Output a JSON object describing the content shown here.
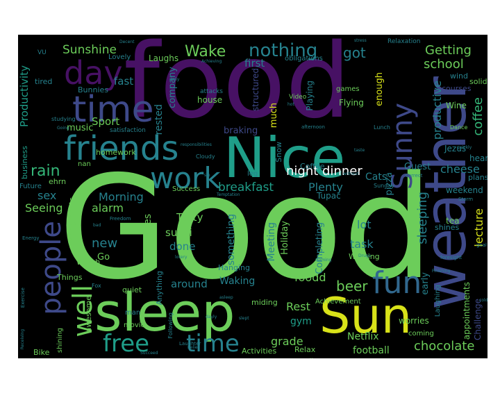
{
  "palette": {
    "background": "#000000",
    "green": "#6ccd5a",
    "yellow": "#d8e219",
    "teal": "#1f9e89",
    "blue": "#3e4989",
    "purple": "#471164",
    "cyan": "#26828e"
  },
  "words": [
    {
      "text": "Good",
      "color": "#6ccd5a"
    },
    {
      "text": "food",
      "color": "#471164"
    },
    {
      "text": "weather",
      "color": "#3e4989"
    },
    {
      "text": "Nice",
      "color": "#1f9e89"
    },
    {
      "text": "sleep",
      "color": "#6ccd5a"
    },
    {
      "text": "Sun",
      "color": "#d8e219"
    },
    {
      "text": "friends",
      "color": "#26828e"
    },
    {
      "text": "time",
      "color": "#3e4989"
    },
    {
      "text": "day",
      "color": "#471164"
    },
    {
      "text": "work",
      "color": "#26828e"
    },
    {
      "text": "people",
      "color": "#3e4989"
    },
    {
      "text": "Sunny",
      "color": "#3e4989"
    },
    {
      "text": "fun",
      "color": "#31688e"
    },
    {
      "text": "free",
      "color": "#1f9e89"
    },
    {
      "text": "time",
      "color": "#26828e"
    },
    {
      "text": "well",
      "color": "#6ccd5a"
    },
    {
      "text": "nothing",
      "color": "#26828e"
    },
    {
      "text": "Wake",
      "color": "#6ccd5a"
    },
    {
      "text": "Sunshine",
      "color": "#6ccd5a"
    },
    {
      "text": "Getting",
      "color": "#6ccd5a"
    },
    {
      "text": "school",
      "color": "#6ccd5a"
    },
    {
      "text": "got",
      "color": "#26828e"
    },
    {
      "text": "coffee",
      "color": "#35b779"
    },
    {
      "text": "productive",
      "color": "#26828e"
    },
    {
      "text": "night",
      "color": "#ffffff"
    },
    {
      "text": "dinner",
      "color": "#ffffff"
    },
    {
      "text": "breakfast",
      "color": "#1f9e89"
    },
    {
      "text": "rain",
      "color": "#35b779"
    },
    {
      "text": "Morning",
      "color": "#26828e"
    },
    {
      "text": "alarm",
      "color": "#6ccd5a"
    },
    {
      "text": "sex",
      "color": "#26828e"
    },
    {
      "text": "Seeing",
      "color": "#6ccd5a"
    },
    {
      "text": "Productivity",
      "color": "#1f9e89"
    },
    {
      "text": "cheese",
      "color": "#26828e"
    },
    {
      "text": "lecture",
      "color": "#d8e219"
    },
    {
      "text": "sleeping",
      "color": "#26828e"
    },
    {
      "text": "beer",
      "color": "#6ccd5a"
    },
    {
      "text": "foodd",
      "color": "#6ccd5a"
    },
    {
      "text": "chocolate",
      "color": "#6ccd5a"
    },
    {
      "text": "football",
      "color": "#6ccd5a"
    },
    {
      "text": "grade",
      "color": "#6ccd5a"
    },
    {
      "text": "Plenty",
      "color": "#26828e"
    },
    {
      "text": "Cats",
      "color": "#26828e"
    },
    {
      "text": "lot",
      "color": "#26828e"
    },
    {
      "text": "task",
      "color": "#26828e"
    },
    {
      "text": "Rest",
      "color": "#6ccd5a"
    },
    {
      "text": "gym",
      "color": "#1f9e89"
    },
    {
      "text": "new",
      "color": "#26828e"
    },
    {
      "text": "sushi",
      "color": "#6ccd5a"
    },
    {
      "text": "done",
      "color": "#26828e"
    },
    {
      "text": "Tasty",
      "color": "#6ccd5a"
    },
    {
      "text": "around",
      "color": "#26828e"
    },
    {
      "text": "Waking",
      "color": "#26828e"
    },
    {
      "text": "Pancakes",
      "color": "#6ccd5a"
    },
    {
      "text": "something",
      "color": "#26828e"
    },
    {
      "text": "Meeting",
      "color": "#26828e"
    },
    {
      "text": "Holiday",
      "color": "#6ccd5a"
    },
    {
      "text": "Completing",
      "color": "#26828e"
    },
    {
      "text": "Sport",
      "color": "#6ccd5a"
    },
    {
      "text": "music",
      "color": "#6ccd5a"
    },
    {
      "text": "fast",
      "color": "#26828e"
    },
    {
      "text": "first",
      "color": "#26828e"
    },
    {
      "text": "Laughs",
      "color": "#6ccd5a"
    },
    {
      "text": "company",
      "color": "#26828e"
    },
    {
      "text": "rested",
      "color": "#26828e"
    },
    {
      "text": "enough",
      "color": "#d8e219"
    },
    {
      "text": "much",
      "color": "#d8e219"
    },
    {
      "text": "pizza",
      "color": "#26828e"
    },
    {
      "text": "Netflix",
      "color": "#6ccd5a"
    },
    {
      "text": "Guest",
      "color": "#26828e"
    },
    {
      "text": "weekend",
      "color": "#26828e"
    },
    {
      "text": "early",
      "color": "#26828e"
    },
    {
      "text": "braking",
      "color": "#3e4989"
    },
    {
      "text": "structured",
      "color": "#3e4989"
    },
    {
      "text": "house",
      "color": "#6ccd5a"
    },
    {
      "text": "Playing",
      "color": "#26828e"
    },
    {
      "text": "Flying",
      "color": "#6ccd5a"
    },
    {
      "text": "games",
      "color": "#6ccd5a"
    },
    {
      "text": "Coffee",
      "color": "#26828e"
    },
    {
      "text": "Tupac",
      "color": "#26828e"
    },
    {
      "text": "Snow",
      "color": "#26828e"
    },
    {
      "text": "Wine",
      "color": "#6ccd5a"
    },
    {
      "text": "Jezus",
      "color": "#26828e"
    },
    {
      "text": "heart",
      "color": "#26828e"
    },
    {
      "text": "plans",
      "color": "#26828e"
    },
    {
      "text": "tea",
      "color": "#6ccd5a"
    },
    {
      "text": "shines",
      "color": "#26828e"
    },
    {
      "text": "Challenge",
      "color": "#3e4989"
    },
    {
      "text": "appointments",
      "color": "#6ccd5a"
    },
    {
      "text": "Laughing",
      "color": "#26828e"
    },
    {
      "text": "Relax",
      "color": "#6ccd5a"
    },
    {
      "text": "Activities",
      "color": "#6ccd5a"
    },
    {
      "text": "college",
      "color": "#6ccd5a"
    },
    {
      "text": "kiss",
      "color": "#26828e"
    },
    {
      "text": "coming",
      "color": "#6ccd5a"
    },
    {
      "text": "worries",
      "color": "#6ccd5a"
    },
    {
      "text": "Achievement",
      "color": "#6ccd5a"
    },
    {
      "text": "miding",
      "color": "#6ccd5a"
    },
    {
      "text": "Hanging",
      "color": "#26828e"
    },
    {
      "text": "Winning",
      "color": "#6ccd5a"
    },
    {
      "text": "assigments",
      "color": "#6ccd5a"
    },
    {
      "text": "business",
      "color": "#1f9e89"
    },
    {
      "text": "Future",
      "color": "#26828e"
    },
    {
      "text": "homework",
      "color": "#6ccd5a"
    },
    {
      "text": "nan",
      "color": "#6ccd5a"
    },
    {
      "text": "ehrn",
      "color": "#6ccd5a"
    },
    {
      "text": "Success",
      "color": "#6ccd5a"
    },
    {
      "text": "Go",
      "color": "#6ccd5a"
    },
    {
      "text": "Watch",
      "color": "#6ccd5a"
    },
    {
      "text": "Things",
      "color": "#6ccd5a"
    },
    {
      "text": "quiet",
      "color": "#6ccd5a"
    },
    {
      "text": "Anything",
      "color": "#26828e"
    },
    {
      "text": "awesome",
      "color": "#6ccd5a"
    },
    {
      "text": "movie",
      "color": "#6ccd5a"
    },
    {
      "text": "Bike",
      "color": "#6ccd5a"
    },
    {
      "text": "shining",
      "color": "#6ccd5a"
    },
    {
      "text": "Bunnies",
      "color": "#26828e"
    },
    {
      "text": "tired",
      "color": "#26828e"
    },
    {
      "text": "Lovely",
      "color": "#26828e"
    },
    {
      "text": "obligations",
      "color": "#26828e"
    },
    {
      "text": "courses",
      "color": "#3e4989"
    },
    {
      "text": "solid",
      "color": "#6ccd5a"
    },
    {
      "text": "wind",
      "color": "#26828e"
    },
    {
      "text": "Relaxation",
      "color": "#26828e"
    },
    {
      "text": "attacks",
      "color": "#26828e"
    },
    {
      "text": "Video",
      "color": "#6ccd5a"
    },
    {
      "text": "leg",
      "color": "#26828e"
    },
    {
      "text": "satisfaction",
      "color": "#26828e"
    },
    {
      "text": "Dance",
      "color": "#6ccd5a"
    },
    {
      "text": "Lunch",
      "color": "#26828e"
    },
    {
      "text": "VU",
      "color": "#26828e"
    },
    {
      "text": "studying",
      "color": "#26828e"
    },
    {
      "text": "Cloudy",
      "color": "#26828e"
    },
    {
      "text": "Freedom",
      "color": "#26828e"
    },
    {
      "text": "Following",
      "color": "#26828e"
    },
    {
      "text": "Laughter",
      "color": "#26828e"
    },
    {
      "text": "Exercise",
      "color": "#26828e"
    },
    {
      "text": "Energy",
      "color": "#26828e"
    },
    {
      "text": "Fox",
      "color": "#26828e"
    },
    {
      "text": "experiences",
      "color": "#26828e"
    },
    {
      "text": "Storm",
      "color": "#26828e"
    },
    {
      "text": "foresight",
      "color": "#26828e"
    },
    {
      "text": "Sunday",
      "color": "#26828e"
    },
    {
      "text": "correct",
      "color": "#26828e"
    },
    {
      "text": "afternoon",
      "color": "#26828e"
    },
    {
      "text": "Decent",
      "color": "#26828e"
    },
    {
      "text": "Achieving",
      "color": "#26828e"
    },
    {
      "text": "daily",
      "color": "#26828e"
    },
    {
      "text": "slept",
      "color": "#26828e"
    },
    {
      "text": "dayly",
      "color": "#26828e"
    },
    {
      "text": "Temptation",
      "color": "#26828e"
    },
    {
      "text": "responsibilities",
      "color": "#26828e"
    },
    {
      "text": "Succeed",
      "color": "#26828e"
    },
    {
      "text": "Receiving",
      "color": "#26828e"
    },
    {
      "text": "asleep",
      "color": "#26828e"
    },
    {
      "text": "quickly",
      "color": "#26828e"
    },
    {
      "text": "stress",
      "color": "#26828e"
    },
    {
      "text": "taste",
      "color": "#26828e"
    },
    {
      "text": "goal",
      "color": "#26828e"
    },
    {
      "text": "cold",
      "color": "#26828e"
    },
    {
      "text": "Drugs",
      "color": "#26828e"
    },
    {
      "text": "Gaming",
      "color": "#26828e"
    },
    {
      "text": "Finishing",
      "color": "#26828e"
    },
    {
      "text": "lotery",
      "color": "#26828e"
    },
    {
      "text": "bad",
      "color": "#26828e"
    },
    {
      "text": "hot",
      "color": "#26828e"
    },
    {
      "text": "sip",
      "color": "#26828e"
    },
    {
      "text": "without",
      "color": "#26828e"
    },
    {
      "text": "man",
      "color": "#26828e"
    },
    {
      "text": "Going",
      "color": "#26828e"
    },
    {
      "text": "Relief",
      "color": "#26828e"
    }
  ]
}
